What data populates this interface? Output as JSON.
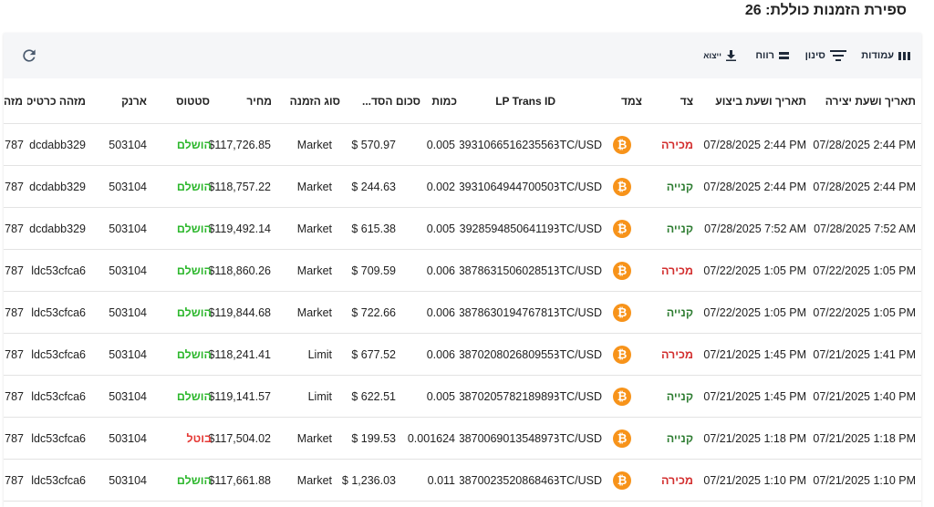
{
  "page": {
    "title": "ספירת הזמנות כוללת: 26"
  },
  "toolbar": {
    "columns_label": "עמודות",
    "filter_label": "סינון",
    "density_label": "רווח",
    "export_label": "ייצוא",
    "icons": [
      "columns-icon",
      "filter-icon",
      "density-icon",
      "download-icon",
      "refresh-icon"
    ]
  },
  "colors": {
    "sell": "#d32f2f",
    "buy": "#2e7d32",
    "completed": "#2fb82f",
    "cancelled": "#e53935",
    "coin": "#f7931a"
  },
  "table": {
    "headers": {
      "created": "תאריך ושעת יצירה",
      "executed": "תאריך ושעת ביצוע",
      "side": "צד",
      "pair": "צמד",
      "lp": "LP Trans ID",
      "qty": "כמות",
      "total": "סכום הסד...",
      "type": "סוג הזמנה",
      "price": "מחיר",
      "status": "סטטוס",
      "wallet": "ארנק",
      "card": "מזהה כרטיס",
      "extra": "מזה"
    },
    "rows": [
      {
        "created": "07/28/2025 2:44 PM",
        "executed": "07/28/2025 2:44 PM",
        "side": "מכירה",
        "side_type": "sell",
        "pair": "BTC/USD",
        "lp": "393106651623556",
        "qty": "0.005",
        "total": "$ 570.97",
        "type": "Market",
        "price": "$117,726.85",
        "status": "הושלם",
        "status_type": "done",
        "wallet": "503104",
        "card": "dcdabb329",
        "extra": "787"
      },
      {
        "created": "07/28/2025 2:44 PM",
        "executed": "07/28/2025 2:44 PM",
        "side": "קנייה",
        "side_type": "buy",
        "pair": "BTC/USD",
        "lp": "393106494470050",
        "qty": "0.002",
        "total": "$ 244.63",
        "type": "Market",
        "price": "$118,757.22",
        "status": "הושלם",
        "status_type": "done",
        "wallet": "503104",
        "card": "dcdabb329",
        "extra": "787"
      },
      {
        "created": "07/28/2025 7:52 AM",
        "executed": "07/28/2025 7:52 AM",
        "side": "קנייה",
        "side_type": "buy",
        "pair": "BTC/USD",
        "lp": "392859485064119",
        "qty": "0.005",
        "total": "$ 615.38",
        "type": "Market",
        "price": "$119,492.14",
        "status": "הושלם",
        "status_type": "done",
        "wallet": "503104",
        "card": "dcdabb329",
        "extra": "787"
      },
      {
        "created": "07/22/2025 1:05 PM",
        "executed": "07/22/2025 1:05 PM",
        "side": "מכירה",
        "side_type": "sell",
        "pair": "BTC/USD",
        "lp": "387863150602851",
        "qty": "0.006",
        "total": "$ 709.59",
        "type": "Market",
        "price": "$118,860.26",
        "status": "הושלם",
        "status_type": "done",
        "wallet": "503104",
        "card": "ldc53cfca6",
        "extra": "787"
      },
      {
        "created": "07/22/2025 1:05 PM",
        "executed": "07/22/2025 1:05 PM",
        "side": "קנייה",
        "side_type": "buy",
        "pair": "BTC/USD",
        "lp": "387863019476781",
        "qty": "0.006",
        "total": "$ 722.66",
        "type": "Market",
        "price": "$119,844.68",
        "status": "הושלם",
        "status_type": "done",
        "wallet": "503104",
        "card": "ldc53cfca6",
        "extra": "787"
      },
      {
        "created": "07/21/2025 1:41 PM",
        "executed": "07/21/2025 1:45 PM",
        "side": "מכירה",
        "side_type": "sell",
        "pair": "BTC/USD",
        "lp": "387020802680955",
        "qty": "0.006",
        "total": "$ 677.52",
        "type": "Limit",
        "price": "$118,241.41",
        "status": "הושלם",
        "status_type": "done",
        "wallet": "503104",
        "card": "ldc53cfca6",
        "extra": "787"
      },
      {
        "created": "07/21/2025 1:40 PM",
        "executed": "07/21/2025 1:45 PM",
        "side": "קנייה",
        "side_type": "buy",
        "pair": "BTC/USD",
        "lp": "387020578218989",
        "qty": "0.005",
        "total": "$ 622.51",
        "type": "Limit",
        "price": "$119,141.57",
        "status": "הושלם",
        "status_type": "done",
        "wallet": "503104",
        "card": "ldc53cfca6",
        "extra": "787"
      },
      {
        "created": "07/21/2025 1:18 PM",
        "executed": "07/21/2025 1:18 PM",
        "side": "קנייה",
        "side_type": "buy",
        "pair": "BTC/USD",
        "lp": "387006901354897",
        "qty": "0.001624",
        "total": "$ 199.53",
        "type": "Market",
        "price": "$117,504.02",
        "status": "בוטל",
        "status_type": "cancel",
        "wallet": "503104",
        "card": "ldc53cfca6",
        "extra": "787"
      },
      {
        "created": "07/21/2025 1:10 PM",
        "executed": "07/21/2025 1:10 PM",
        "side": "מכירה",
        "side_type": "sell",
        "pair": "BTC/USD",
        "lp": "387002352086846",
        "qty": "0.011",
        "total": "$ 1,236.03",
        "type": "Market",
        "price": "$117,661.88",
        "status": "הושלם",
        "status_type": "done",
        "wallet": "503104",
        "card": "ldc53cfca6",
        "extra": "787"
      }
    ]
  }
}
